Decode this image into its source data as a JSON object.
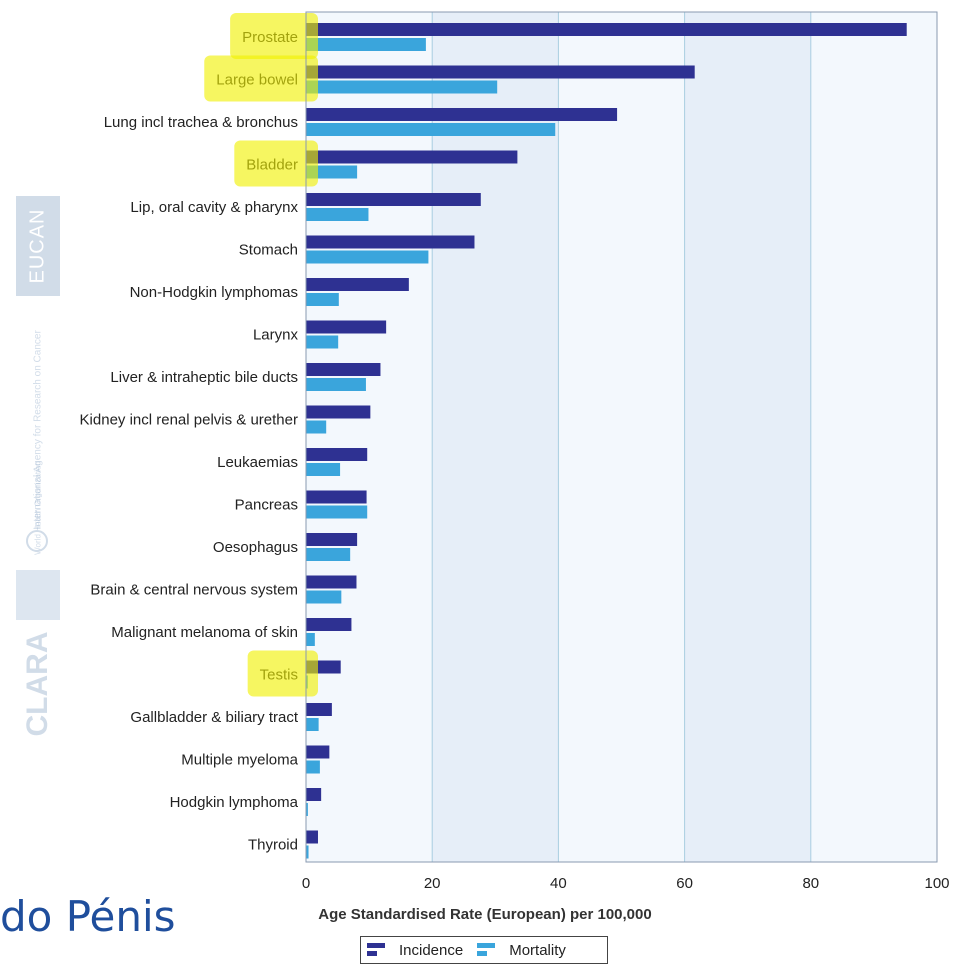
{
  "slide": {
    "partial_text": "do Pénis"
  },
  "watermark": {
    "eucan": "EUCAN",
    "clara": "CLARA",
    "iarc": "International Agency for Research on Cancer",
    "who": "World Health Organization"
  },
  "colors": {
    "incidence": "#2e3192",
    "mortality": "#3aa5dc",
    "plot_bg": "#f3f8fd",
    "band_bg": "#e6eef8",
    "grid": "#a9cde0",
    "highlight": "#f0f000"
  },
  "chart_data": {
    "type": "bar",
    "orientation": "horizontal",
    "categories": [
      "Prostate",
      "Large bowel",
      "Lung incl trachea & bronchus",
      "Bladder",
      "Lip, oral cavity & pharynx",
      "Stomach",
      "Non-Hodgkin lymphomas",
      "Larynx",
      "Liver & intraheptic bile ducts",
      "Kidney incl renal pelvis & urether",
      "Leukaemias",
      "Pancreas",
      "Oesophagus",
      "Brain & central nervous system",
      "Malignant melanoma of skin",
      "Testis",
      "Gallbladder & biliary tract",
      "Multiple myeloma",
      "Hodgkin lymphoma",
      "Thyroid"
    ],
    "highlighted": [
      "Prostate",
      "Large bowel",
      "Bladder",
      "Testis"
    ],
    "series": [
      {
        "name": "Incidence",
        "values": [
          95.2,
          61.6,
          49.3,
          33.5,
          27.7,
          26.7,
          16.3,
          12.7,
          11.8,
          10.2,
          9.7,
          9.6,
          8.1,
          8.0,
          7.2,
          5.5,
          4.1,
          3.7,
          2.4,
          1.9
        ]
      },
      {
        "name": "Mortality",
        "values": [
          19.0,
          30.3,
          39.5,
          8.1,
          9.9,
          19.4,
          5.2,
          5.1,
          9.5,
          3.2,
          5.4,
          9.7,
          7.0,
          5.6,
          1.4,
          0.3,
          2.0,
          2.2,
          0.3,
          0.4
        ]
      }
    ],
    "xlabel": "Age Standardised Rate (European) per 100,000",
    "xlim": [
      0,
      100
    ],
    "xticks": [
      "0",
      "20",
      "40",
      "60",
      "80",
      "100"
    ],
    "grid": true,
    "legend": "bottom-center"
  }
}
